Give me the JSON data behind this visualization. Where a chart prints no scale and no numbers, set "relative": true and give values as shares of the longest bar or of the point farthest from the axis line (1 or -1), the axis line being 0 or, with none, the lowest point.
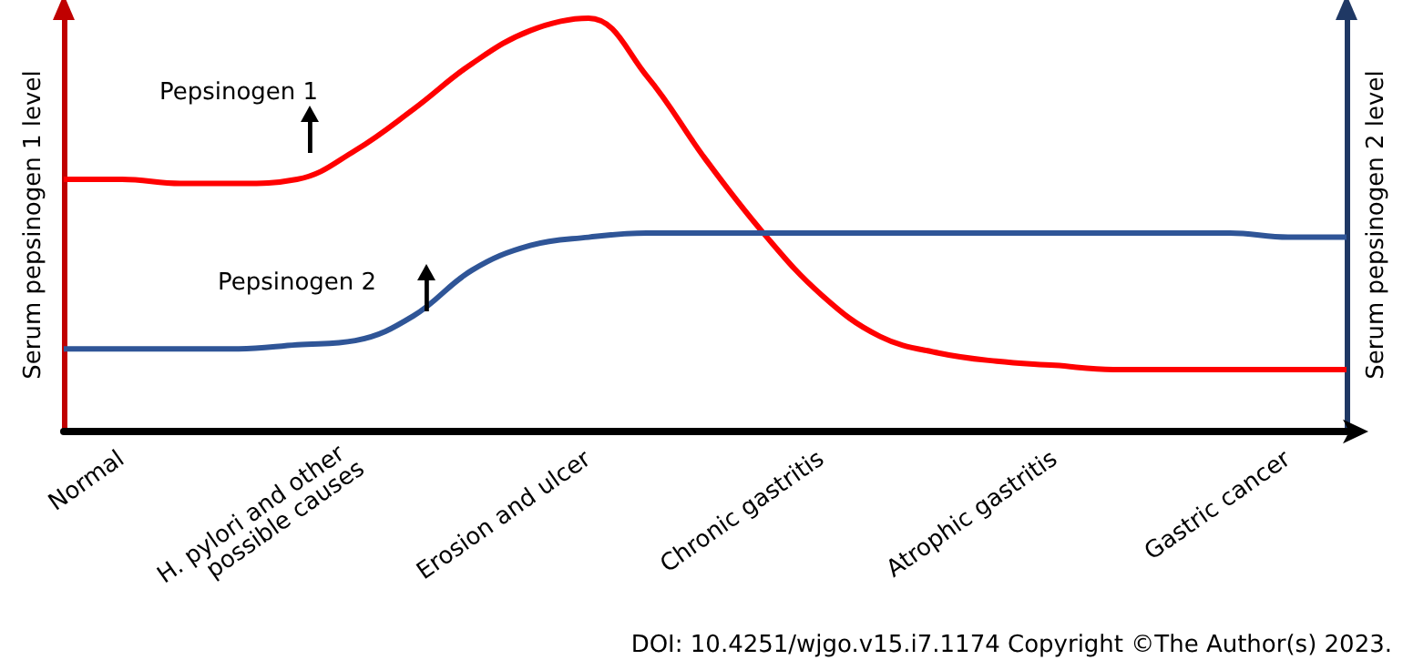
{
  "chart_data": {
    "type": "line",
    "relative": true,
    "ylabel": "Serum pepsinogen 1 level",
    "y2label": "Serum pepsinogen 2 level",
    "categories": [
      null,
      "Normal",
      null,
      null,
      null,
      "H. pylori and other possible causes",
      null,
      null,
      null,
      "Erosion and ulcer",
      null,
      null,
      null,
      "Chronic gastritis",
      null,
      null,
      null,
      "Atrophic gastritis",
      null,
      null,
      null,
      "Gastric cancer",
      null
    ],
    "series": [
      {
        "name": "Pepsinogen 1",
        "color": "#ff0000",
        "values": [
          0.61,
          0.61,
          0.6,
          0.6,
          0.61,
          0.68,
          0.78,
          0.89,
          0.97,
          1.0,
          0.86,
          0.66,
          0.48,
          0.33,
          0.23,
          0.19,
          0.17,
          0.16,
          0.15,
          0.15,
          0.15,
          0.15,
          0.15
        ]
      },
      {
        "name": "Pepsinogen 2",
        "color": "#2f5597",
        "axis": "y2",
        "values": [
          0.2,
          0.2,
          0.2,
          0.2,
          0.21,
          0.22,
          0.28,
          0.39,
          0.45,
          0.47,
          0.48,
          0.48,
          0.48,
          0.48,
          0.48,
          0.48,
          0.48,
          0.48,
          0.48,
          0.48,
          0.48,
          0.47,
          0.47
        ]
      }
    ],
    "marker": "none",
    "legend": false,
    "annotations": [
      "DOI: 10.4251/wjgo.v15.i7.1174 Copyright ©The Author(s) 2023."
    ]
  }
}
